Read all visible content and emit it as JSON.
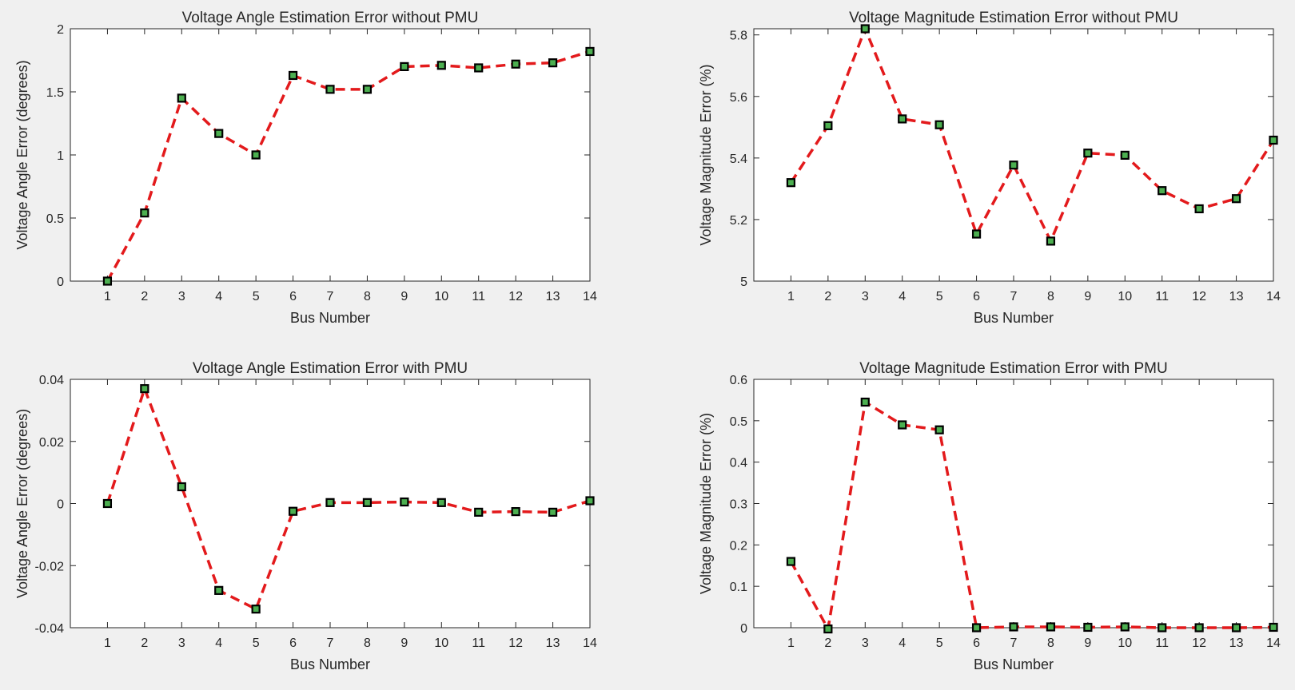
{
  "chart_data": [
    {
      "type": "line",
      "title": "Voltage Angle Estimation Error without PMU",
      "xlabel": "Bus Number",
      "ylabel": "Voltage Angle Error (degrees)",
      "x": [
        1,
        2,
        3,
        4,
        5,
        6,
        7,
        8,
        9,
        10,
        11,
        12,
        13,
        14
      ],
      "values": [
        0,
        0.54,
        1.45,
        1.17,
        1.0,
        1.63,
        1.52,
        1.52,
        1.7,
        1.71,
        1.69,
        1.72,
        1.73,
        1.82
      ],
      "xlim": [
        0,
        14
      ],
      "ylim": [
        0,
        2
      ],
      "yticks": [
        0,
        0.5,
        1,
        1.5,
        2
      ],
      "ytick_labels": [
        "0",
        "0.5",
        "1",
        "1.5",
        "2"
      ],
      "line_color": "#e31a1c",
      "marker_edge": "#000000",
      "marker_face": "#4caf50"
    },
    {
      "type": "line",
      "title": "Voltage Magnitude Estimation Error without PMU",
      "xlabel": "Bus Number",
      "ylabel": "Voltage Magnitude Error (%)",
      "x": [
        1,
        2,
        3,
        4,
        5,
        6,
        7,
        8,
        9,
        10,
        11,
        12,
        13,
        14
      ],
      "values": [
        5.32,
        5.505,
        5.82,
        5.527,
        5.508,
        5.153,
        5.377,
        5.13,
        5.416,
        5.409,
        5.294,
        5.235,
        5.268,
        5.458
      ],
      "xlim": [
        0,
        14
      ],
      "ylim": [
        5,
        5.82
      ],
      "yticks": [
        5,
        5.2,
        5.4,
        5.6,
        5.8
      ],
      "ytick_labels": [
        "5",
        "5.2",
        "5.4",
        "5.6",
        "5.8"
      ],
      "line_color": "#e31a1c",
      "marker_edge": "#000000",
      "marker_face": "#4caf50"
    },
    {
      "type": "line",
      "title": "Voltage Angle Estimation Error with PMU",
      "xlabel": "Bus Number",
      "ylabel": "Voltage Angle Error (degrees)",
      "x": [
        1,
        2,
        3,
        4,
        5,
        6,
        7,
        8,
        9,
        10,
        11,
        12,
        13,
        14
      ],
      "values": [
        0,
        0.037,
        0.0054,
        -0.028,
        -0.034,
        -0.0025,
        0.0003,
        0.0003,
        0.0005,
        0.0003,
        -0.0028,
        -0.0026,
        -0.0028,
        0.0009
      ],
      "xlim": [
        0,
        14
      ],
      "ylim": [
        -0.04,
        0.04
      ],
      "yticks": [
        -0.04,
        -0.02,
        0,
        0.02,
        0.04
      ],
      "ytick_labels": [
        "-0.04",
        "-0.02",
        "0",
        "0.02",
        "0.04"
      ],
      "line_color": "#e31a1c",
      "marker_edge": "#000000",
      "marker_face": "#4caf50"
    },
    {
      "type": "line",
      "title": "Voltage Magnitude Estimation Error with PMU",
      "xlabel": "Bus Number",
      "ylabel": "Voltage Magnitude Error (%)",
      "x": [
        1,
        2,
        3,
        4,
        5,
        6,
        7,
        8,
        9,
        10,
        11,
        12,
        13,
        14
      ],
      "values": [
        0.16,
        -0.003,
        0.545,
        0.49,
        0.478,
        0.0,
        0.002,
        0.002,
        0.001,
        0.002,
        0.0,
        0.0,
        0.0,
        0.001
      ],
      "xlim": [
        0,
        14
      ],
      "ylim": [
        0,
        0.6
      ],
      "yticks": [
        0,
        0.1,
        0.2,
        0.3,
        0.4,
        0.5,
        0.6
      ],
      "ytick_labels": [
        "0",
        "0.1",
        "0.2",
        "0.3",
        "0.4",
        "0.5",
        "0.6"
      ],
      "line_color": "#e31a1c",
      "marker_edge": "#000000",
      "marker_face": "#4caf50"
    }
  ]
}
